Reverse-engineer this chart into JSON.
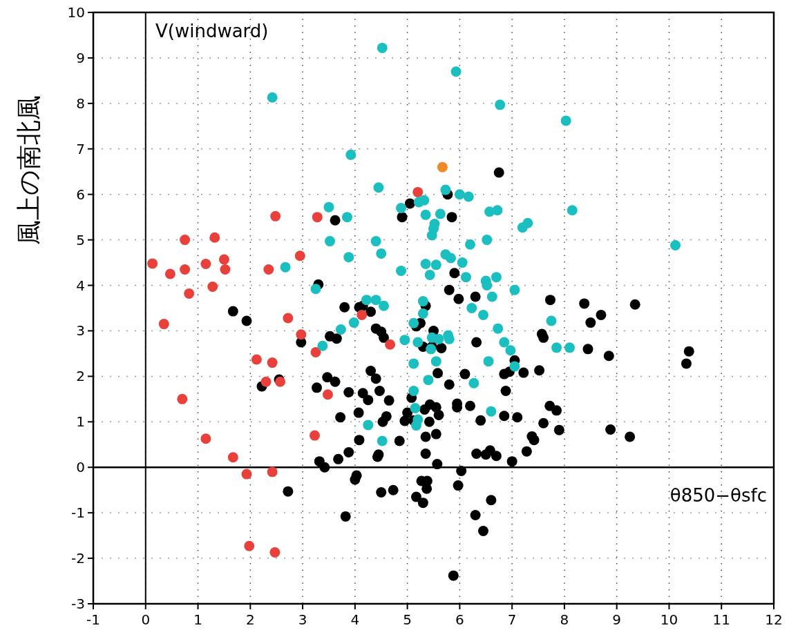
{
  "chart_data": {
    "type": "scatter",
    "ylabel": "風上の南北風",
    "xlabel": "θ850−θsfc",
    "annotations": [
      "V(windward)"
    ],
    "xlim": [
      -1,
      12
    ],
    "xticks": [
      -1,
      0,
      1,
      2,
      3,
      4,
      5,
      6,
      7,
      8,
      9,
      10,
      11,
      12
    ],
    "ylim": [
      -3,
      10
    ],
    "yticks": [
      -3,
      -2,
      -1,
      0,
      1,
      2,
      3,
      4,
      5,
      6,
      7,
      8,
      9,
      10
    ],
    "grid": true,
    "marker": "circle",
    "series": [
      {
        "color": "#000000",
        "x": [
          1.67,
          1.93,
          2.22,
          2.55,
          2.72,
          2.97,
          3.27,
          3.3,
          3.32,
          3.42,
          3.47,
          3.52,
          3.62,
          3.62,
          3.65,
          3.68,
          3.72,
          3.8,
          3.82,
          3.88,
          3.88,
          4.0,
          4.03,
          4.07,
          4.08,
          4.08,
          4.15,
          4.15,
          4.25,
          4.3,
          4.3,
          4.4,
          4.4,
          4.43,
          4.45,
          4.47,
          4.5,
          4.5,
          4.53,
          4.55,
          4.6,
          4.65,
          4.73,
          4.85,
          4.9,
          4.95,
          5.0,
          5.05,
          5.08,
          5.12,
          5.17,
          5.17,
          5.25,
          5.27,
          5.3,
          5.3,
          5.33,
          5.35,
          5.35,
          5.35,
          5.37,
          5.38,
          5.42,
          5.43,
          5.47,
          5.5,
          5.55,
          5.55,
          5.57,
          5.58,
          5.6,
          5.65,
          5.77,
          5.8,
          5.8,
          5.85,
          5.88,
          5.9,
          5.95,
          5.95,
          5.97,
          5.98,
          6.03,
          6.1,
          6.2,
          6.3,
          6.32,
          6.32,
          6.3,
          6.4,
          6.45,
          6.5,
          6.58,
          6.6,
          6.7,
          6.75,
          6.85,
          6.85,
          6.88,
          6.95,
          7.0,
          7.05,
          7.1,
          7.22,
          7.28,
          7.38,
          7.42,
          7.52,
          7.57,
          7.6,
          7.6,
          7.72,
          7.73,
          7.85,
          7.9,
          8.38,
          8.45,
          8.5,
          8.7,
          8.85,
          8.88,
          9.25,
          9.35,
          10.33,
          10.38
        ],
        "values": [
          3.43,
          3.22,
          1.78,
          1.93,
          -0.53,
          2.75,
          1.75,
          4.02,
          0.13,
          0.0,
          1.98,
          2.88,
          1.88,
          5.43,
          2.83,
          0.18,
          1.1,
          3.52,
          -1.08,
          1.65,
          0.33,
          -0.27,
          -0.18,
          1.2,
          0.6,
          3.52,
          1.63,
          3.55,
          1.48,
          3.42,
          2.12,
          3.05,
          1.95,
          0.23,
          0.28,
          1.68,
          2.98,
          -0.55,
          1.0,
          2.85,
          1.12,
          1.47,
          -0.5,
          0.58,
          5.5,
          1.02,
          1.2,
          5.8,
          1.53,
          1.03,
          -0.65,
          3.1,
          3.17,
          -0.3,
          -0.78,
          2.65,
          1.27,
          3.55,
          0.67,
          0.3,
          -0.47,
          -0.3,
          1.0,
          1.38,
          2.65,
          3.0,
          1.32,
          0.73,
          0.07,
          2.07,
          1.15,
          2.62,
          6.0,
          3.9,
          1.82,
          5.5,
          -2.38,
          4.27,
          1.4,
          1.32,
          -0.4,
          3.7,
          -0.08,
          2.05,
          1.35,
          3.75,
          0.3,
          2.75,
          -1.05,
          1.03,
          -1.4,
          0.28,
          0.37,
          -0.72,
          0.25,
          6.48,
          1.13,
          2.05,
          1.68,
          2.1,
          0.13,
          2.35,
          1.1,
          2.08,
          0.35,
          0.68,
          0.6,
          2.13,
          2.93,
          2.85,
          0.97,
          1.35,
          3.68,
          1.25,
          0.82,
          3.6,
          2.6,
          3.18,
          3.35,
          2.45,
          0.83,
          0.67,
          3.58,
          2.28,
          2.55
        ]
      },
      {
        "color": "#e8413c",
        "x": [
          0.13,
          0.35,
          0.47,
          0.7,
          0.75,
          0.75,
          0.83,
          1.15,
          1.15,
          1.28,
          1.32,
          1.5,
          1.52,
          1.67,
          1.93,
          1.98,
          2.12,
          2.3,
          2.35,
          2.42,
          2.42,
          2.47,
          2.48,
          2.57,
          2.72,
          2.95,
          2.97,
          3.23,
          3.25,
          3.28,
          3.48,
          4.13,
          4.67,
          5.2
        ],
        "values": [
          4.48,
          3.15,
          4.25,
          1.5,
          4.35,
          5.0,
          3.82,
          4.47,
          0.63,
          3.97,
          5.05,
          4.57,
          4.35,
          0.22,
          -0.15,
          -1.73,
          2.37,
          1.88,
          4.35,
          2.3,
          -0.1,
          -1.87,
          5.52,
          1.88,
          3.28,
          4.65,
          2.92,
          0.7,
          2.53,
          5.5,
          1.6,
          3.35,
          2.7,
          6.05
        ]
      },
      {
        "color": "#1bbfbf",
        "x": [
          2.42,
          2.67,
          3.25,
          3.38,
          3.5,
          3.52,
          3.73,
          3.85,
          3.88,
          3.92,
          3.98,
          4.22,
          4.25,
          4.4,
          4.4,
          4.45,
          4.5,
          4.52,
          4.52,
          4.55,
          4.88,
          4.88,
          4.95,
          5.12,
          5.12,
          5.12,
          5.15,
          5.17,
          5.2,
          5.2,
          5.22,
          5.3,
          5.3,
          5.32,
          5.35,
          5.35,
          5.4,
          5.43,
          5.45,
          5.47,
          5.47,
          5.5,
          5.52,
          5.55,
          5.55,
          5.6,
          5.63,
          5.73,
          5.73,
          5.78,
          5.8,
          5.83,
          5.93,
          6.0,
          6.05,
          6.12,
          6.17,
          6.2,
          6.23,
          6.27,
          6.45,
          6.5,
          6.52,
          6.52,
          6.55,
          6.57,
          6.6,
          6.62,
          6.7,
          6.72,
          6.73,
          6.77,
          6.85,
          6.97,
          7.05,
          7.05,
          7.2,
          7.3,
          7.75,
          7.85,
          8.03,
          8.1,
          8.15,
          10.12
        ],
        "values": [
          8.13,
          4.4,
          3.92,
          2.67,
          5.72,
          4.97,
          3.03,
          5.5,
          4.62,
          6.87,
          3.18,
          3.68,
          0.93,
          3.68,
          4.97,
          6.15,
          4.7,
          9.22,
          0.58,
          3.55,
          4.32,
          5.7,
          2.8,
          3.17,
          2.28,
          1.68,
          1.3,
          0.92,
          1.05,
          2.75,
          5.83,
          3.38,
          3.65,
          5.87,
          5.55,
          4.47,
          1.92,
          4.23,
          2.6,
          2.85,
          5.1,
          5.25,
          5.35,
          4.45,
          2.33,
          2.82,
          5.57,
          6.1,
          4.68,
          2.9,
          2.82,
          4.6,
          8.7,
          6.0,
          4.5,
          4.18,
          5.95,
          4.9,
          3.5,
          1.85,
          3.35,
          4.1,
          5.0,
          4.0,
          2.33,
          5.62,
          1.23,
          3.75,
          4.18,
          5.65,
          3.05,
          7.97,
          2.75,
          2.57,
          2.22,
          3.9,
          5.27,
          5.37,
          3.22,
          2.63,
          7.62,
          2.63,
          5.65,
          4.88
        ]
      },
      {
        "color": "#f0892a",
        "x": [
          5.67
        ],
        "values": [
          6.6
        ]
      }
    ]
  }
}
